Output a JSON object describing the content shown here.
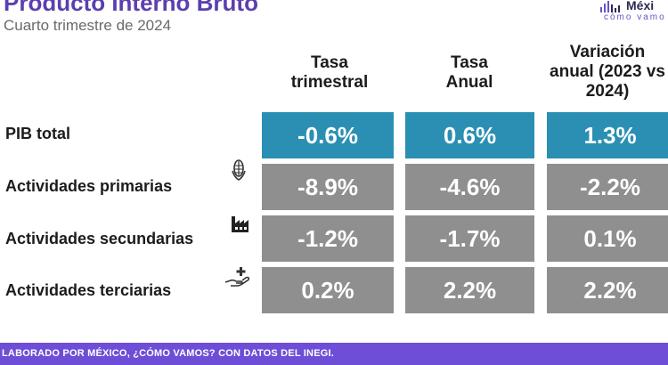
{
  "header": {
    "title": "Producto Interno Bruto",
    "subtitle": "Cuarto trimestre de 2024"
  },
  "logo": {
    "main": "Méxi",
    "sub": "cómo vamo",
    "accent_color": "#6b4fc8"
  },
  "columns": [
    {
      "line1": "Tasa",
      "line2": "trimestral",
      "line3": ""
    },
    {
      "line1": "Tasa",
      "line2": "Anual",
      "line3": ""
    },
    {
      "line1": "Variación",
      "line2": "anual (2023 vs",
      "line3": "2024)"
    }
  ],
  "rows": [
    {
      "label": "PIB total",
      "icon": "",
      "values": [
        "-0.6%",
        "0.6%",
        "1.3%"
      ],
      "highlight": true
    },
    {
      "label": "Actividades primarias",
      "icon": "corn-icon",
      "values": [
        "-8.9%",
        "-4.6%",
        "-2.2%"
      ],
      "highlight": false
    },
    {
      "label": "Actividades secundarias",
      "icon": "factory-icon",
      "values": [
        "-1.2%",
        "-1.7%",
        "0.1%"
      ],
      "highlight": false
    },
    {
      "label": "Actividades terciarias",
      "icon": "hand-service-icon",
      "values": [
        "0.2%",
        "2.2%",
        "2.2%"
      ],
      "highlight": false
    }
  ],
  "colors": {
    "highlight": "#2a8fb3",
    "cell": "#8f8f8f",
    "title": "#5b3fb0",
    "footer": "#6e4ed6"
  },
  "footer": {
    "text": "LABORADO POR MÉXICO, ¿CÓMO VAMOS? CON DATOS DEL INEGI."
  }
}
